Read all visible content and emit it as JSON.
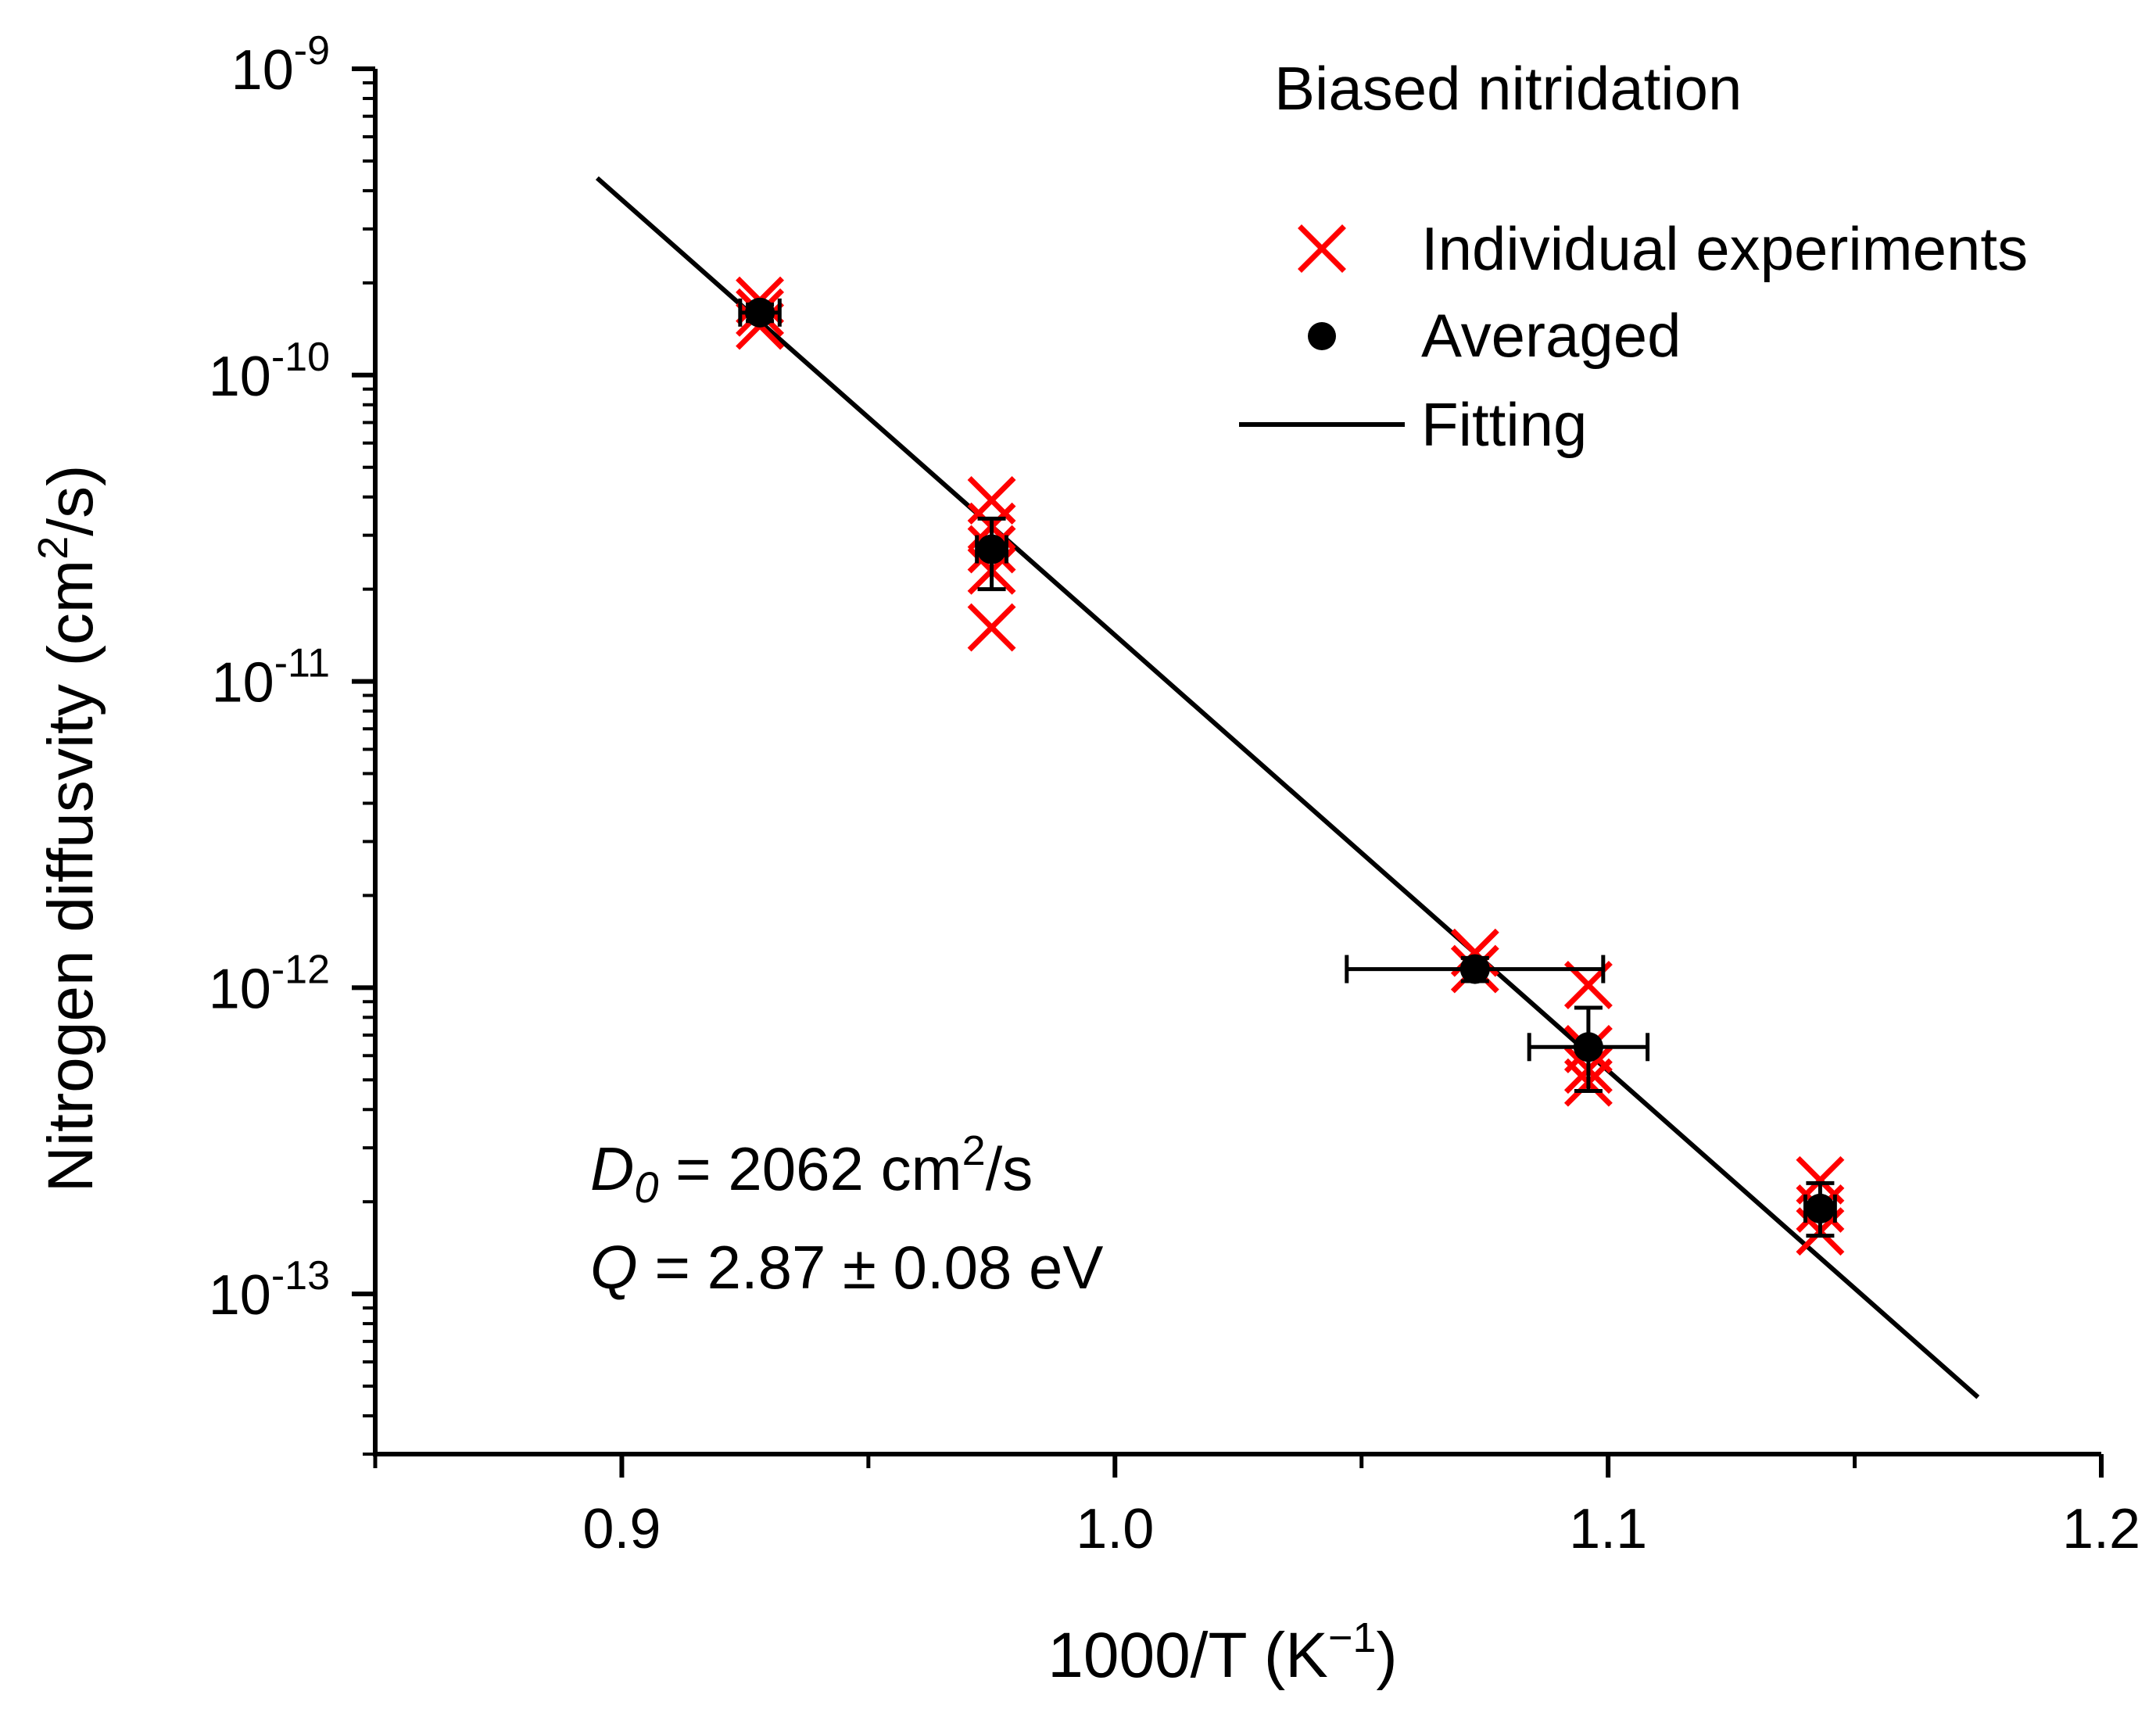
{
  "chart_data": {
    "type": "scatter",
    "title": "",
    "xlabel": "1000/T (K⁻¹)",
    "xlabel_parts": {
      "base": "1000/T (K",
      "sup": "−1",
      "tail": ")"
    },
    "ylabel": "Nitrogen diffusvity (cm²/s)",
    "ylabel_parts": {
      "base": "Nitrogen diffusvity (cm",
      "sup": "2",
      "tail": "/s)"
    },
    "xlim": [
      0.85,
      1.2
    ],
    "ylim": [
      3e-14,
      1e-09
    ],
    "yscale": "log",
    "grid": false,
    "x_ticks": [
      {
        "value": 0.9,
        "label": "0.9"
      },
      {
        "value": 1.0,
        "label": "1.0"
      },
      {
        "value": 1.1,
        "label": "1.1"
      },
      {
        "value": 1.2,
        "label": "1.2"
      }
    ],
    "x_minor_ticks": [
      0.85,
      0.95,
      1.05,
      1.15
    ],
    "y_ticks": [
      {
        "value": 1e-09,
        "base": "10",
        "exp": "-9"
      },
      {
        "value": 1e-10,
        "base": "10",
        "exp": "-10"
      },
      {
        "value": 1e-11,
        "base": "10",
        "exp": "-11"
      },
      {
        "value": 1e-12,
        "base": "10",
        "exp": "-12"
      },
      {
        "value": 1e-13,
        "base": "10",
        "exp": "-13"
      }
    ],
    "legend": {
      "position": "top-right",
      "title": "Biased nitridation",
      "entries": [
        {
          "label": "Individual experiments",
          "marker": "x",
          "color": "#ff0000"
        },
        {
          "label": "Averaged",
          "marker": "circle",
          "color": "#000000"
        },
        {
          "label": "Fitting",
          "marker": "line",
          "color": "#000000"
        }
      ]
    },
    "series": [
      {
        "name": "Individual experiments",
        "marker": "x",
        "color": "#ff0000",
        "points": [
          {
            "x": 0.928,
            "y": 1.75e-10
          },
          {
            "x": 0.928,
            "y": 1.6e-10
          },
          {
            "x": 0.928,
            "y": 1.45e-10
          },
          {
            "x": 0.975,
            "y": 3.9e-11
          },
          {
            "x": 0.975,
            "y": 3.2e-11
          },
          {
            "x": 0.975,
            "y": 2.7e-11
          },
          {
            "x": 0.975,
            "y": 2.3e-11
          },
          {
            "x": 0.975,
            "y": 1.5e-11
          },
          {
            "x": 1.073,
            "y": 1.3e-12
          },
          {
            "x": 1.073,
            "y": 1.15e-12
          },
          {
            "x": 1.096,
            "y": 1.02e-12
          },
          {
            "x": 1.096,
            "y": 6.3e-13
          },
          {
            "x": 1.096,
            "y": 5.4e-13
          },
          {
            "x": 1.096,
            "y": 4.9e-13
          },
          {
            "x": 1.143,
            "y": 2.35e-13
          },
          {
            "x": 1.143,
            "y": 1.9e-13
          },
          {
            "x": 1.143,
            "y": 1.6e-13
          }
        ]
      },
      {
        "name": "Averaged",
        "marker": "circle",
        "color": "#000000",
        "points": [
          {
            "x": 0.928,
            "y": 1.6e-10,
            "xerr": 0.004,
            "ylo": 1.5e-10,
            "yhi": 1.7e-10
          },
          {
            "x": 0.975,
            "y": 2.7e-11,
            "xerr": 0.003,
            "ylo": 2e-11,
            "yhi": 3.4e-11
          },
          {
            "x": 1.073,
            "y": 1.15e-12,
            "xerr": 0.026,
            "ylo": 1.05e-12,
            "yhi": 1.25e-12
          },
          {
            "x": 1.096,
            "y": 6.4e-13,
            "xerr": 0.012,
            "ylo": 4.6e-13,
            "yhi": 8.6e-13
          },
          {
            "x": 1.143,
            "y": 1.9e-13,
            "xerr": 0.003,
            "ylo": 1.55e-13,
            "yhi": 2.3e-13
          }
        ]
      },
      {
        "name": "Fitting",
        "type": "line",
        "color": "#000000",
        "points": [
          {
            "x": 0.895,
            "y": 4.4e-10
          },
          {
            "x": 1.175,
            "y": 4.6e-14
          }
        ]
      }
    ],
    "annotations": {
      "d0": {
        "symbol": "D",
        "sub": "0",
        "text": " = 2062 cm",
        "sup": "2",
        "tail": "/s"
      },
      "q": {
        "symbol": "Q",
        "text": " = 2.87 ± 0.08 eV"
      }
    }
  }
}
